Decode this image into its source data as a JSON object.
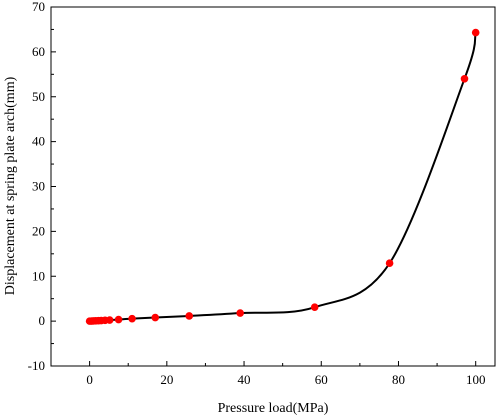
{
  "chart_data": {
    "type": "scatter",
    "title": "",
    "xlabel": "Pressure load(MPa)",
    "ylabel": "Displacement at spring plate arch(mm)",
    "xlim": [
      -10,
      105
    ],
    "ylim": [
      -10,
      70
    ],
    "x_ticks": [
      0,
      20,
      40,
      60,
      80,
      100
    ],
    "y_ticks": [
      -10,
      0,
      10,
      20,
      30,
      40,
      50,
      60,
      70
    ],
    "grid": false,
    "legend": "none",
    "series": [
      {
        "points": [
          [
            0.0,
            0.0
          ],
          [
            0.5,
            0.02
          ],
          [
            1.0,
            0.05
          ],
          [
            1.6,
            0.08
          ],
          [
            2.3,
            0.1
          ],
          [
            3.0,
            0.13
          ],
          [
            4.0,
            0.18
          ],
          [
            5.2,
            0.23
          ],
          [
            7.5,
            0.35
          ],
          [
            11.0,
            0.55
          ],
          [
            17.0,
            0.8
          ],
          [
            25.8,
            1.15
          ],
          [
            39.0,
            1.8
          ],
          [
            58.3,
            3.1
          ],
          [
            77.7,
            12.9
          ],
          [
            97.1,
            54.0
          ],
          [
            100.0,
            64.3
          ]
        ],
        "marker_color": "#ff0000",
        "line_color": "#000000"
      }
    ]
  }
}
